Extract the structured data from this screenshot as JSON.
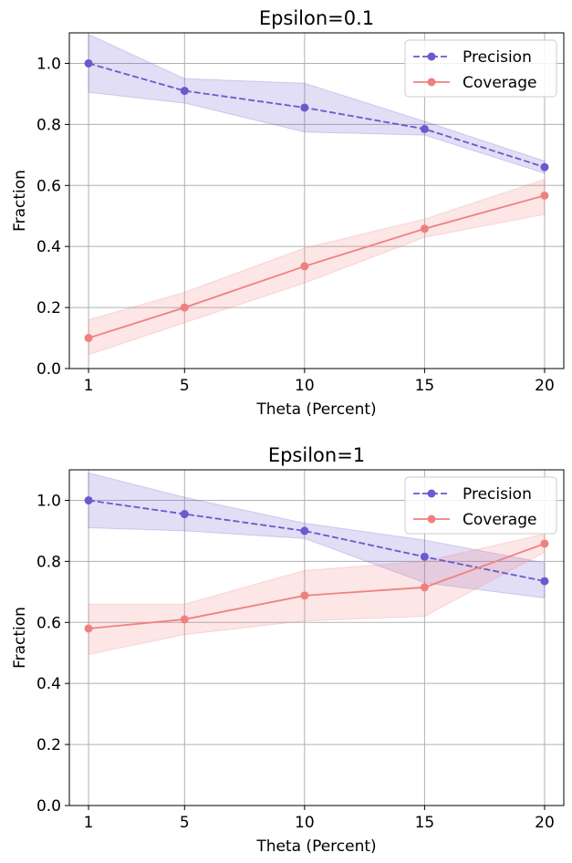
{
  "colors": {
    "precision": "#6a5acd",
    "coverage": "#f08080",
    "grid": "#b0b0b0"
  },
  "chart_data": [
    {
      "type": "line",
      "title": "Epsilon=0.1",
      "xlabel": "Theta (Percent)",
      "ylabel": "Fraction",
      "categories": [
        "1",
        "5",
        "10",
        "15",
        "20"
      ],
      "x": [
        1,
        5,
        10,
        15,
        20
      ],
      "ylim": [
        0,
        1.1
      ],
      "yticks": [
        "0.0",
        "0.2",
        "0.4",
        "0.6",
        "0.8",
        "1.0"
      ],
      "grid": true,
      "legend": "top-right",
      "series": [
        {
          "name": "Precision",
          "style": "dashed",
          "values": [
            1.0,
            0.91,
            0.855,
            0.785,
            0.66
          ],
          "lower": [
            0.905,
            0.87,
            0.775,
            0.765,
            0.64
          ],
          "upper": [
            1.095,
            0.95,
            0.935,
            0.81,
            0.68
          ]
        },
        {
          "name": "Coverage",
          "style": "solid",
          "values": [
            0.1,
            0.2,
            0.335,
            0.458,
            0.567
          ],
          "lower": [
            0.045,
            0.15,
            0.28,
            0.43,
            0.505
          ],
          "upper": [
            0.16,
            0.25,
            0.395,
            0.49,
            0.62
          ]
        }
      ]
    },
    {
      "type": "line",
      "title": "Epsilon=1",
      "xlabel": "Theta (Percent)",
      "ylabel": "Fraction",
      "categories": [
        "1",
        "5",
        "10",
        "15",
        "20"
      ],
      "x": [
        1,
        5,
        10,
        15,
        20
      ],
      "ylim": [
        0,
        1.1
      ],
      "yticks": [
        "0.0",
        "0.2",
        "0.4",
        "0.6",
        "0.8",
        "1.0"
      ],
      "grid": true,
      "legend": "top-right",
      "series": [
        {
          "name": "Precision",
          "style": "dashed",
          "values": [
            1.0,
            0.955,
            0.9,
            0.815,
            0.735
          ],
          "lower": [
            0.91,
            0.9,
            0.875,
            0.73,
            0.68
          ],
          "upper": [
            1.09,
            1.01,
            0.925,
            0.87,
            0.795
          ]
        },
        {
          "name": "Coverage",
          "style": "solid",
          "values": [
            0.58,
            0.61,
            0.688,
            0.715,
            0.858
          ],
          "lower": [
            0.495,
            0.56,
            0.605,
            0.62,
            0.83
          ],
          "upper": [
            0.66,
            0.66,
            0.77,
            0.8,
            0.89
          ]
        }
      ]
    }
  ]
}
